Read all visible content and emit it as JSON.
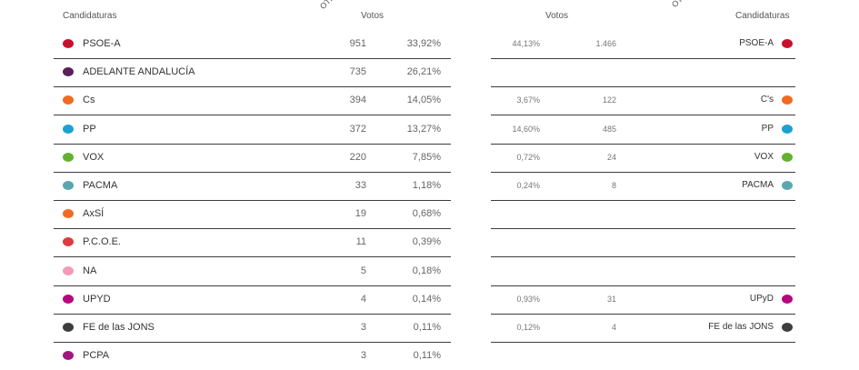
{
  "left": {
    "header": {
      "candidaturas": "Candidaturas",
      "votos": "Votos",
      "rotated": "OTR"
    },
    "rows": [
      {
        "name": "PSOE-A",
        "votes": "951",
        "pct": "33,92%",
        "color": "#c8102e"
      },
      {
        "name": "ADELANTE ANDALUCÍA",
        "votes": "735",
        "pct": "26,21%",
        "color": "#5b1f5a"
      },
      {
        "name": "Cs",
        "votes": "394",
        "pct": "14,05%",
        "color": "#f26a21"
      },
      {
        "name": "PP",
        "votes": "372",
        "pct": "13,27%",
        "color": "#1ba2d0"
      },
      {
        "name": "VOX",
        "votes": "220",
        "pct": "7,85%",
        "color": "#63b22f"
      },
      {
        "name": "PACMA",
        "votes": "33",
        "pct": "1,18%",
        "color": "#5aa7b0"
      },
      {
        "name": "AxSÍ",
        "votes": "19",
        "pct": "0,68%",
        "color": "#f26a21"
      },
      {
        "name": "P.C.O.E.",
        "votes": "11",
        "pct": "0,39%",
        "color": "#e03a3e"
      },
      {
        "name": "NA",
        "votes": "5",
        "pct": "0,18%",
        "color": "#f29bb8"
      },
      {
        "name": "UPYD",
        "votes": "4",
        "pct": "0,14%",
        "color": "#b5087e"
      },
      {
        "name": "FE de las JONS",
        "votes": "3",
        "pct": "0,11%",
        "color": "#3d3d3d"
      },
      {
        "name": "PCPA",
        "votes": "3",
        "pct": "0,11%",
        "color": "#a0177f"
      }
    ]
  },
  "right": {
    "header": {
      "votos": "Votos",
      "candidaturas": "Candidaturas",
      "rotated": "OT"
    },
    "rows": [
      {
        "pct": "44,13%",
        "votes": "1.466",
        "name": "PSOE-A",
        "color": "#c8102e"
      },
      {
        "pct": "",
        "votes": "",
        "name": "",
        "color": ""
      },
      {
        "pct": "3,67%",
        "votes": "122",
        "name": "C's",
        "color": "#f26a21"
      },
      {
        "pct": "14,60%",
        "votes": "485",
        "name": "PP",
        "color": "#1ba2d0"
      },
      {
        "pct": "0,72%",
        "votes": "24",
        "name": "VOX",
        "color": "#63b22f"
      },
      {
        "pct": "0,24%",
        "votes": "8",
        "name": "PACMA",
        "color": "#5aa7b0"
      },
      {
        "pct": "",
        "votes": "",
        "name": "",
        "color": ""
      },
      {
        "pct": "",
        "votes": "",
        "name": "",
        "color": ""
      },
      {
        "pct": "",
        "votes": "",
        "name": "",
        "color": ""
      },
      {
        "pct": "0,93%",
        "votes": "31",
        "name": "UPyD",
        "color": "#b5087e"
      },
      {
        "pct": "0,12%",
        "votes": "4",
        "name": "FE de las JONS",
        "color": "#3d3d3d"
      }
    ]
  }
}
